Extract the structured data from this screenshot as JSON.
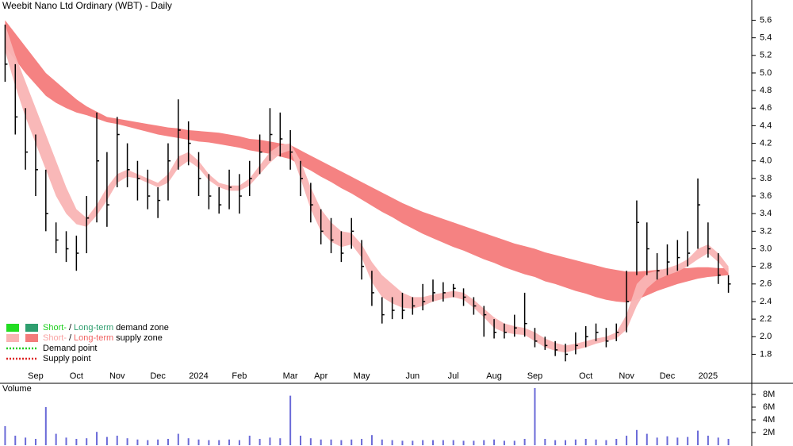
{
  "chart_data": [
    {
      "type": "ohlc",
      "title": "Weebit Nano Ltd Ordinary (WBT) - Daily",
      "categories": [
        null,
        null,
        null,
        "Sep",
        null,
        null,
        null,
        "Oct",
        null,
        null,
        null,
        "Nov",
        null,
        null,
        null,
        "Dec",
        null,
        null,
        null,
        "2024",
        null,
        null,
        null,
        "Feb",
        null,
        null,
        null,
        null,
        "Mar",
        null,
        null,
        "Apr",
        null,
        null,
        null,
        "May",
        null,
        null,
        null,
        null,
        "Jun",
        null,
        null,
        null,
        "Jul",
        null,
        null,
        null,
        "Aug",
        null,
        null,
        null,
        "Sep",
        null,
        null,
        null,
        null,
        "Oct",
        null,
        null,
        null,
        "Nov",
        null,
        null,
        null,
        "Dec",
        null,
        null,
        null,
        "2025",
        null,
        null
      ],
      "high": [
        5.55,
        5.1,
        4.6,
        4.3,
        3.9,
        3.3,
        3.2,
        3.15,
        3.6,
        4.55,
        4.1,
        4.5,
        4.2,
        4.0,
        3.9,
        3.7,
        4.2,
        4.7,
        4.45,
        4.1,
        3.85,
        3.7,
        3.9,
        3.85,
        4.0,
        4.3,
        4.6,
        4.55,
        4.35,
        4.0,
        3.75,
        3.45,
        3.35,
        3.2,
        3.35,
        3.1,
        2.75,
        2.45,
        2.45,
        2.5,
        2.45,
        2.6,
        2.65,
        2.62,
        2.6,
        2.55,
        2.45,
        2.35,
        2.2,
        2.15,
        2.25,
        2.5,
        2.1,
        2.0,
        1.95,
        1.92,
        2.05,
        2.12,
        2.15,
        2.1,
        2.15,
        2.75,
        3.55,
        3.3,
        2.95,
        3.05,
        3.1,
        3.2,
        3.8,
        3.3,
        2.95,
        2.7
      ],
      "low": [
        4.9,
        4.3,
        3.9,
        3.6,
        3.2,
        2.95,
        2.85,
        2.75,
        2.95,
        3.3,
        3.25,
        3.7,
        3.7,
        3.55,
        3.45,
        3.35,
        3.55,
        3.9,
        3.95,
        3.6,
        3.45,
        3.4,
        3.45,
        3.4,
        3.6,
        3.85,
        4.0,
        4.05,
        3.9,
        3.6,
        3.3,
        3.05,
        2.95,
        2.85,
        3.0,
        2.65,
        2.35,
        2.15,
        2.2,
        2.2,
        2.25,
        2.3,
        2.4,
        2.4,
        2.45,
        2.35,
        2.25,
        2.0,
        1.98,
        1.98,
        2.0,
        2.0,
        1.88,
        1.85,
        1.78,
        1.72,
        1.8,
        1.88,
        1.95,
        1.88,
        1.95,
        2.05,
        2.7,
        2.7,
        2.65,
        2.7,
        2.75,
        2.8,
        3.0,
        2.9,
        2.6,
        2.5
      ],
      "close": [
        5.1,
        4.5,
        4.1,
        3.9,
        3.4,
        3.1,
        3.0,
        2.95,
        3.35,
        4.0,
        3.5,
        4.3,
        3.9,
        3.8,
        3.6,
        3.55,
        4.0,
        4.35,
        4.2,
        3.8,
        3.6,
        3.5,
        3.7,
        3.6,
        3.8,
        4.1,
        4.3,
        4.25,
        4.1,
        3.8,
        3.5,
        3.2,
        3.1,
        2.95,
        3.2,
        2.8,
        2.5,
        2.25,
        2.3,
        2.3,
        2.35,
        2.4,
        2.5,
        2.5,
        2.55,
        2.45,
        2.35,
        2.25,
        2.05,
        2.05,
        2.1,
        2.15,
        1.95,
        1.9,
        1.85,
        1.8,
        1.9,
        2.0,
        2.05,
        1.95,
        2.05,
        2.4,
        3.3,
        3.0,
        2.75,
        2.85,
        2.9,
        2.95,
        3.5,
        3.0,
        2.7,
        2.6
      ],
      "bands": [
        {
          "color": "#f47b7b",
          "upper": [
            5.6,
            5.45,
            5.3,
            5.15,
            5.0,
            4.9,
            4.8,
            4.7,
            4.62,
            4.56,
            4.5,
            4.48,
            4.46,
            4.44,
            4.42,
            4.4,
            4.38,
            4.37,
            4.35,
            4.34,
            4.33,
            4.32,
            4.3,
            4.28,
            4.25,
            4.24,
            4.22,
            4.2,
            4.18,
            4.12,
            4.06,
            4.0,
            3.94,
            3.88,
            3.82,
            3.76,
            3.7,
            3.64,
            3.58,
            3.52,
            3.47,
            3.42,
            3.38,
            3.34,
            3.3,
            3.26,
            3.22,
            3.18,
            3.14,
            3.1,
            3.06,
            3.03,
            3.0,
            2.96,
            2.93,
            2.9,
            2.87,
            2.84,
            2.81,
            2.78,
            2.76,
            2.74,
            2.74,
            2.75,
            2.76,
            2.77,
            2.78,
            2.78,
            2.79,
            2.79,
            2.78,
            2.78
          ],
          "lower": [
            5.3,
            5.15,
            5.0,
            4.87,
            4.74,
            4.66,
            4.6,
            4.55,
            4.52,
            4.48,
            4.44,
            4.42,
            4.39,
            4.36,
            4.33,
            4.3,
            4.28,
            4.26,
            4.24,
            4.22,
            4.21,
            4.19,
            4.17,
            4.15,
            4.12,
            4.1,
            4.08,
            4.05,
            4.02,
            3.95,
            3.89,
            3.82,
            3.76,
            3.69,
            3.63,
            3.56,
            3.49,
            3.42,
            3.36,
            3.29,
            3.23,
            3.17,
            3.12,
            3.07,
            3.02,
            2.98,
            2.93,
            2.88,
            2.84,
            2.79,
            2.75,
            2.71,
            2.68,
            2.63,
            2.6,
            2.56,
            2.52,
            2.49,
            2.45,
            2.42,
            2.4,
            2.39,
            2.42,
            2.47,
            2.52,
            2.56,
            2.6,
            2.63,
            2.66,
            2.68,
            2.69,
            2.7
          ]
        },
        {
          "color": "#f9b4b4",
          "upper": [
            5.55,
            5.2,
            4.9,
            4.6,
            4.3,
            4.0,
            3.7,
            3.45,
            3.35,
            3.5,
            3.7,
            3.85,
            3.9,
            3.85,
            3.8,
            3.75,
            3.85,
            4.05,
            4.1,
            4.0,
            3.85,
            3.75,
            3.72,
            3.72,
            3.8,
            3.95,
            4.1,
            4.18,
            4.2,
            4.0,
            3.7,
            3.45,
            3.3,
            3.2,
            3.18,
            3.05,
            2.85,
            2.7,
            2.6,
            2.5,
            2.45,
            2.45,
            2.48,
            2.5,
            2.52,
            2.5,
            2.42,
            2.32,
            2.22,
            2.15,
            2.12,
            2.1,
            2.05,
            1.98,
            1.93,
            1.9,
            1.92,
            1.95,
            1.98,
            2.0,
            2.05,
            2.25,
            2.6,
            2.72,
            2.75,
            2.78,
            2.82,
            2.88,
            3.0,
            3.05,
            2.95,
            2.8
          ],
          "lower": [
            5.25,
            4.85,
            4.5,
            4.2,
            3.9,
            3.6,
            3.4,
            3.28,
            3.25,
            3.38,
            3.55,
            3.75,
            3.82,
            3.8,
            3.75,
            3.7,
            3.75,
            3.92,
            4.0,
            3.92,
            3.78,
            3.7,
            3.66,
            3.66,
            3.72,
            3.85,
            3.98,
            4.08,
            4.12,
            3.8,
            3.45,
            3.2,
            3.08,
            3.02,
            3.05,
            2.9,
            2.62,
            2.45,
            2.38,
            2.33,
            2.32,
            2.35,
            2.4,
            2.43,
            2.45,
            2.42,
            2.33,
            2.22,
            2.1,
            2.05,
            2.03,
            2.02,
            1.95,
            1.88,
            1.84,
            1.82,
            1.85,
            1.88,
            1.92,
            1.95,
            1.98,
            2.08,
            2.35,
            2.55,
            2.65,
            2.7,
            2.74,
            2.8,
            2.88,
            2.95,
            2.85,
            2.72
          ]
        }
      ],
      "ylim": [
        1.47,
        5.83
      ],
      "yticks": [
        1.8,
        {
          "value": 2,
          "label": "2.0"
        },
        2.2,
        2.4,
        2.6,
        2.8,
        {
          "value": 3,
          "label": "3.0"
        },
        3.2,
        3.4,
        3.6,
        3.8,
        {
          "value": 4,
          "label": "4.0"
        },
        4.2,
        4.4,
        4.6,
        4.8,
        {
          "value": 5,
          "label": "5.0"
        },
        5.2,
        5.4,
        5.6
      ]
    },
    {
      "type": "bar",
      "title": "Volume",
      "color": "#6a6ad8",
      "values": [
        3000000,
        1500000,
        1200000,
        1000000,
        6000000,
        1800000,
        1200000,
        1000000,
        1100000,
        2100000,
        1300000,
        1500000,
        1100000,
        900000,
        800000,
        900000,
        1000000,
        1800000,
        1100000,
        900000,
        800000,
        800000,
        900000,
        800000,
        1500000,
        1000000,
        1200000,
        1100000,
        7800000,
        1500000,
        1100000,
        900000,
        900000,
        800000,
        900000,
        1000000,
        1600000,
        900000,
        800000,
        700000,
        700000,
        800000,
        800000,
        800000,
        800000,
        700000,
        700000,
        800000,
        900000,
        700000,
        700000,
        1000000,
        9000000,
        1000000,
        800000,
        800000,
        900000,
        1000000,
        900000,
        800000,
        1000000,
        1500000,
        2400000,
        1800000,
        1200000,
        1400000,
        1200000,
        1300000,
        2300000,
        1500000,
        1200000,
        1000000
      ],
      "ylim": [
        0,
        9750000
      ],
      "yticks": [
        {
          "value": 2000000,
          "label": "2M"
        },
        {
          "value": 4000000,
          "label": "4M"
        },
        {
          "value": 6000000,
          "label": "6M"
        },
        {
          "value": 8000000,
          "label": "8M"
        }
      ]
    }
  ],
  "legend": [
    {
      "parts": [
        "Short-",
        "/",
        "Long-term",
        "demand zone"
      ],
      "part_colors": [
        "#1ccf1c",
        "#000000",
        "#2e9e6e",
        "#000000"
      ],
      "swatches": [
        "#22dd22",
        "#2e9e6e"
      ]
    },
    {
      "parts": [
        "Short-",
        "/",
        "Long-term",
        "supply zone"
      ],
      "part_colors": [
        "#f9a4a4",
        "#000000",
        "#f06464",
        "#000000"
      ],
      "swatches": [
        "#f9b4b4",
        "#f47b7b"
      ]
    },
    {
      "parts": [
        "Demand point"
      ],
      "part_colors": [
        "#000000"
      ],
      "line": "#22cc22"
    },
    {
      "parts": [
        "Supply point"
      ],
      "part_colors": [
        "#000000"
      ],
      "line": "#dd2222"
    }
  ]
}
